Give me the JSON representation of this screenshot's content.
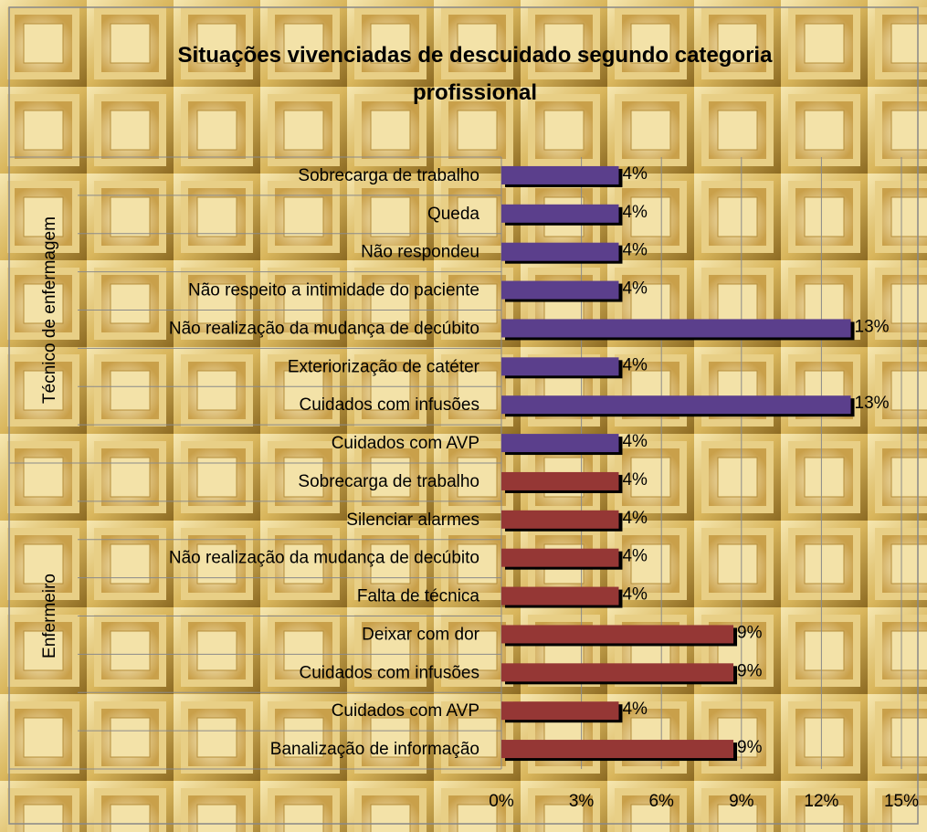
{
  "chart_data": {
    "type": "grouped-hbar",
    "title": "Situações vivenciadas de descuidado segundo categoria profissional",
    "groups": [
      {
        "name": "Técnico de enfermagem",
        "color": "#5b3f8c",
        "categories": [
          "Sobrecarga de trabalho",
          "Queda",
          "Não respondeu",
          "Não respeito a intimidade do paciente",
          "Não realização da mudança de decúbito",
          "Exteriorização de catéter",
          "Cuidados com infusões",
          "Cuidados com AVP"
        ],
        "values": [
          4.4,
          4.4,
          4.4,
          4.4,
          13.1,
          4.4,
          13.1,
          4.4
        ],
        "value_labels": [
          "4%",
          "4%",
          "4%",
          "4%",
          "13%",
          "4%",
          "13%",
          "4%"
        ]
      },
      {
        "name": "Enfermeiro",
        "color": "#953735",
        "categories": [
          "Sobrecarga de trabalho",
          "Silenciar alarmes",
          "Não realização da mudança de decúbito",
          "Falta de técnica",
          "Deixar com dor",
          "Cuidados com infusões",
          "Cuidados com AVP",
          "Banalização de informação"
        ],
        "values": [
          4.4,
          4.4,
          4.4,
          4.4,
          8.7,
          8.7,
          4.4,
          8.7
        ],
        "value_labels": [
          "4%",
          "4%",
          "4%",
          "4%",
          "9%",
          "9%",
          "4%",
          "9%"
        ]
      }
    ],
    "xlim": [
      0,
      15
    ],
    "xticks": [
      {
        "value": 0,
        "label": "0%"
      },
      {
        "value": 3,
        "label": "3%"
      },
      {
        "value": 6,
        "label": "6%"
      },
      {
        "value": 9,
        "label": "9%"
      },
      {
        "value": 12,
        "label": "12%"
      },
      {
        "value": 15,
        "label": "15%"
      }
    ],
    "grid": true
  }
}
